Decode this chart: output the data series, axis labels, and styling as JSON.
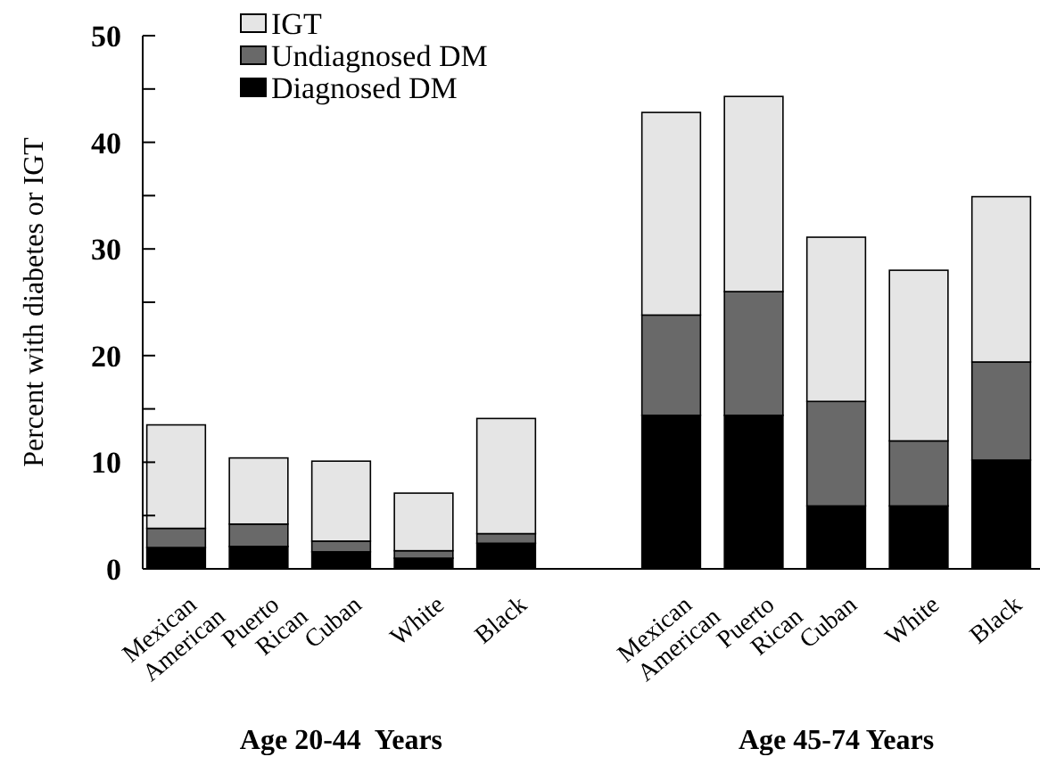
{
  "chart_data": {
    "type": "bar",
    "stacked": true,
    "ylabel": "Percent with diabetes or IGT",
    "categories": [
      "Mexican American",
      "Puerto Rican",
      "Cuban",
      "White",
      "Black",
      null,
      "Mexican American",
      "Puerto Rican",
      "Cuban",
      "White",
      "Black"
    ],
    "series": [
      {
        "name": "Diagnosed DM",
        "color": "#000000",
        "values": [
          2.0,
          2.1,
          1.6,
          1.0,
          2.4,
          null,
          14.4,
          14.4,
          5.9,
          5.9,
          10.2
        ]
      },
      {
        "name": "Undiagnosed DM",
        "color": "#696969",
        "values": [
          1.8,
          2.1,
          1.0,
          0.7,
          0.9,
          null,
          9.4,
          11.6,
          9.8,
          6.1,
          9.2
        ]
      },
      {
        "name": "IGT",
        "color": "#e5e5e5",
        "values": [
          9.7,
          6.2,
          7.5,
          5.4,
          10.8,
          null,
          19.0,
          18.3,
          15.4,
          16.0,
          15.5
        ]
      }
    ],
    "ylim": [
      0,
      50
    ],
    "yticks": [
      0,
      {
        "value": 5,
        "label": null
      },
      10,
      {
        "value": 15,
        "label": null
      },
      20,
      {
        "value": 25,
        "label": null
      },
      30,
      {
        "value": 35,
        "label": null
      },
      40,
      {
        "value": 45,
        "label": null
      },
      50
    ],
    "annotations": [
      "Age 20-44  Years",
      "Age 45-74 Years"
    ],
    "legend": "top left",
    "grid": false
  }
}
